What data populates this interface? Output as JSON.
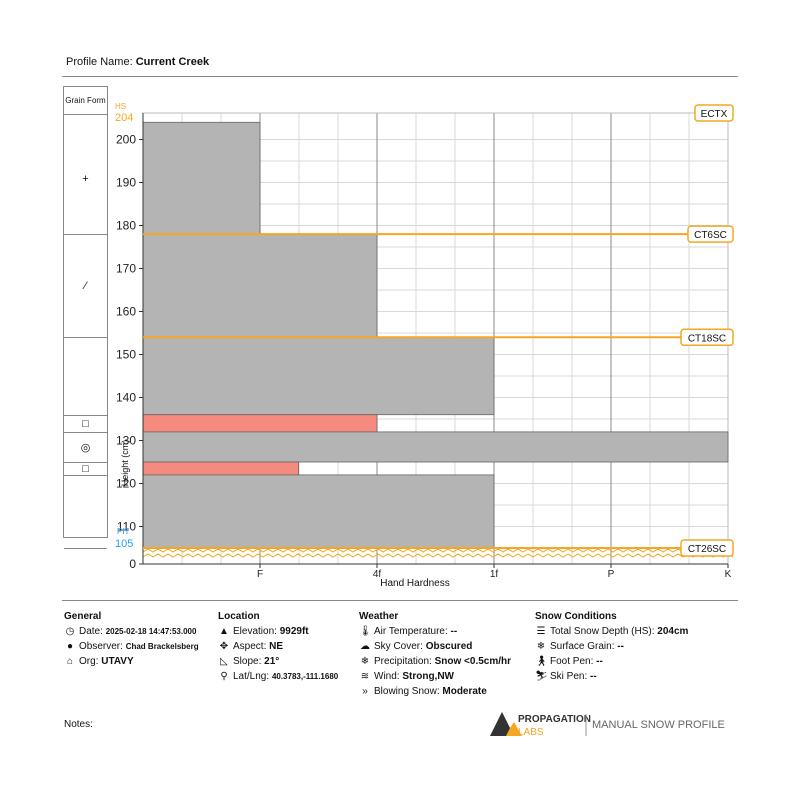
{
  "profile": {
    "label": "Profile Name:",
    "name": "Current Creek"
  },
  "grain_form": {
    "header": "Grain Form",
    "cells": [
      {
        "symbol": "+"
      },
      {
        "symbol": "⁄"
      },
      {
        "symbol": ""
      },
      {
        "symbol": "□"
      },
      {
        "symbol": "◎"
      },
      {
        "symbol": "□"
      },
      {
        "symbol": ""
      }
    ]
  },
  "chart_data": {
    "type": "bar",
    "xlabel": "Hand Hardness",
    "ylabel": "Height (cm)",
    "x_ticks": [
      "F",
      "4f",
      "1f",
      "P",
      "K"
    ],
    "y_ticks": [
      0,
      110,
      120,
      130,
      140,
      150,
      160,
      170,
      180,
      190,
      200
    ],
    "hs_label": "HS",
    "hs_value": "204",
    "pit_label": "PIT",
    "pit_value": "105",
    "layers": [
      {
        "top": 204,
        "bottom": 178,
        "hardness": 1.0,
        "color": "#b4b4b4"
      },
      {
        "top": 178,
        "bottom": 154,
        "hardness": 2.0,
        "color": "#b4b4b4"
      },
      {
        "top": 154,
        "bottom": 136,
        "hardness": 3.0,
        "color": "#b4b4b4"
      },
      {
        "top": 136,
        "bottom": 132,
        "hardness": 2.0,
        "color": "#f58a7e"
      },
      {
        "top": 132,
        "bottom": 125,
        "hardness": 5.3,
        "color": "#b4b4b4"
      },
      {
        "top": 125,
        "bottom": 122,
        "hardness": 1.33,
        "color": "#f58a7e"
      },
      {
        "top": 122,
        "bottom": 105,
        "hardness": 3.0,
        "color": "#b4b4b4"
      }
    ],
    "tests": [
      {
        "label": "ECTX",
        "height": 204,
        "line": false
      },
      {
        "label": "CT6SC",
        "height": 178,
        "line": true
      },
      {
        "label": "CT18SC",
        "height": 154,
        "line": true
      },
      {
        "label": "CT26SC",
        "height": 105,
        "line": true
      }
    ],
    "colors": {
      "test_line": "#f5a623",
      "hs_label": "#f5a623",
      "pit_label": "#2a9df4",
      "grid": "#d9d9d9",
      "major_grid": "#888888"
    }
  },
  "general": {
    "heading": "General",
    "date_label": "Date:",
    "date_value": "2025-02-18 14:47:53.000",
    "observer_label": "Observer:",
    "observer_value": "Chad Brackelsberg",
    "org_label": "Org:",
    "org_value": "UTAVY"
  },
  "location": {
    "heading": "Location",
    "elevation_label": "Elevation:",
    "elevation_value": "9929ft",
    "aspect_label": "Aspect:",
    "aspect_value": "NE",
    "slope_label": "Slope:",
    "slope_value": "21°",
    "latlng_label": "Lat/Lng:",
    "latlng_value": "40.3783,-111.1680"
  },
  "weather": {
    "heading": "Weather",
    "air_label": "Air Temperature:",
    "air_value": "--",
    "sky_label": "Sky Cover:",
    "sky_value": "Obscured",
    "precip_label": "Precipitation:",
    "precip_value": "Snow <0.5cm/hr",
    "wind_label": "Wind:",
    "wind_value": "Strong,NW",
    "blowing_label": "Blowing Snow:",
    "blowing_value": "Moderate"
  },
  "snow": {
    "heading": "Snow Conditions",
    "depth_label": "Total Snow Depth (HS):",
    "depth_value": "204cm",
    "grain_label": "Surface Grain:",
    "grain_value": "--",
    "foot_label": "Foot Pen:",
    "foot_value": "--",
    "ski_label": "Ski Pen:",
    "ski_value": "--"
  },
  "notes": {
    "label": "Notes:"
  },
  "brand": {
    "line1": "PROPAGATION",
    "line2": "LABS",
    "tagline": "MANUAL SNOW PROFILE"
  }
}
